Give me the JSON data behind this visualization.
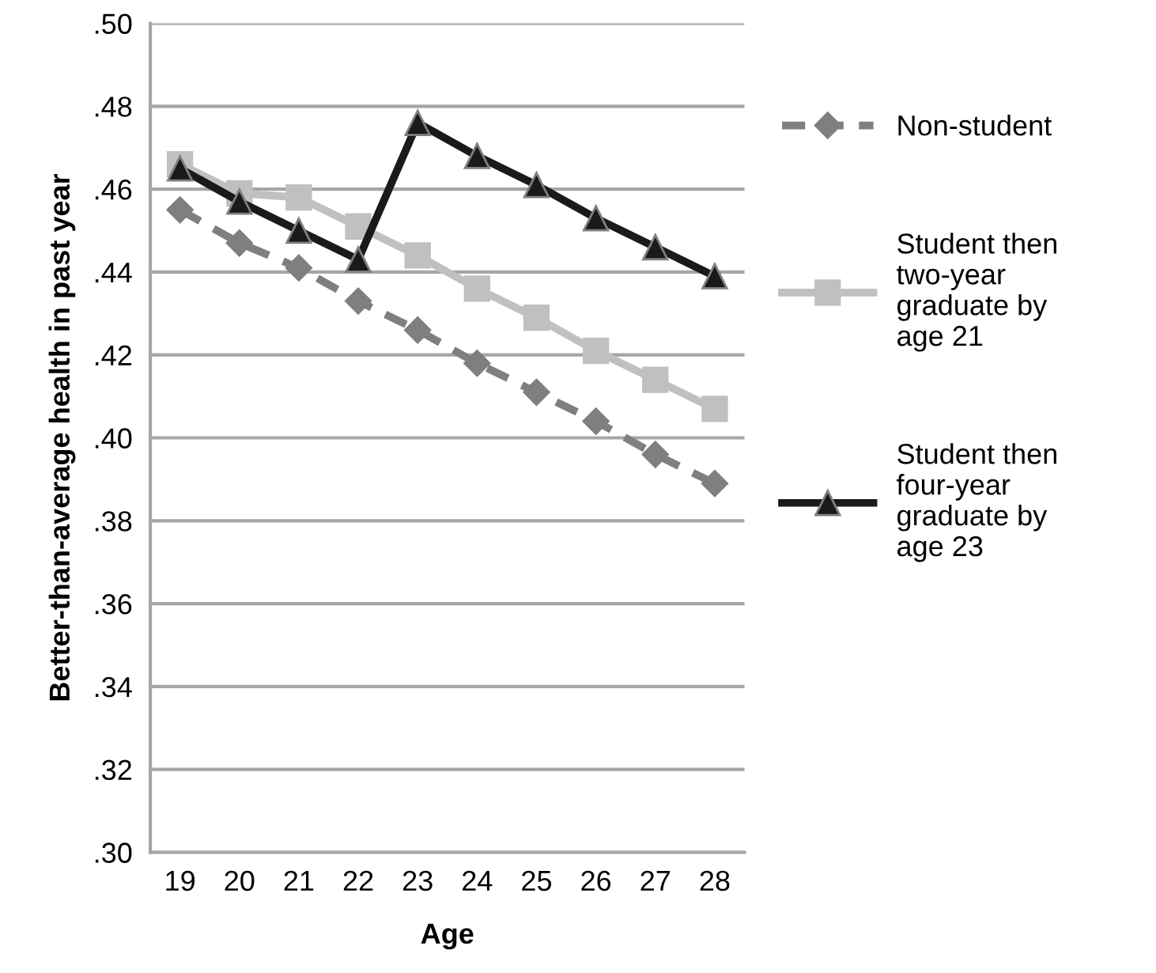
{
  "chart_data": {
    "type": "line",
    "xlabel": "Age",
    "ylabel": "Better-than-average health in past year",
    "categories": [
      "19",
      "20",
      "21",
      "22",
      "23",
      "24",
      "25",
      "26",
      "27",
      "28"
    ],
    "series": [
      {
        "name": "Non-student",
        "color": "#7f7f7f",
        "marker": "diamond",
        "line_style": "dashed",
        "values": [
          0.455,
          0.447,
          0.441,
          0.433,
          0.426,
          0.418,
          0.411,
          0.404,
          0.396,
          0.389
        ]
      },
      {
        "name": "Student then\ntwo-year\ngraduate by\nage 21",
        "color": "#c0c0c0",
        "marker": "square",
        "line_style": "solid",
        "values": [
          0.466,
          0.459,
          0.458,
          0.451,
          0.444,
          0.436,
          0.429,
          0.421,
          0.414,
          0.407
        ]
      },
      {
        "name": "Student then\nfour-year\ngraduate by\nage 23",
        "color": "#1a1a1a",
        "marker": "triangle",
        "line_style": "solid",
        "values": [
          0.465,
          0.457,
          0.45,
          0.443,
          0.476,
          0.468,
          0.461,
          0.453,
          0.446,
          0.439
        ]
      }
    ],
    "ylim": [
      0.3,
      0.5
    ],
    "yticks": [
      {
        "value": 0.3,
        "label": ".30"
      },
      {
        "value": 0.32,
        "label": ".32"
      },
      {
        "value": 0.34,
        "label": ".34"
      },
      {
        "value": 0.36,
        "label": ".36"
      },
      {
        "value": 0.38,
        "label": ".38"
      },
      {
        "value": 0.4,
        "label": ".40"
      },
      {
        "value": 0.42,
        "label": ".42"
      },
      {
        "value": 0.44,
        "label": ".44"
      },
      {
        "value": 0.46,
        "label": ".46"
      },
      {
        "value": 0.48,
        "label": ".48"
      },
      {
        "value": 0.5,
        "label": ".50"
      }
    ],
    "grid": "y",
    "legend": "right"
  }
}
